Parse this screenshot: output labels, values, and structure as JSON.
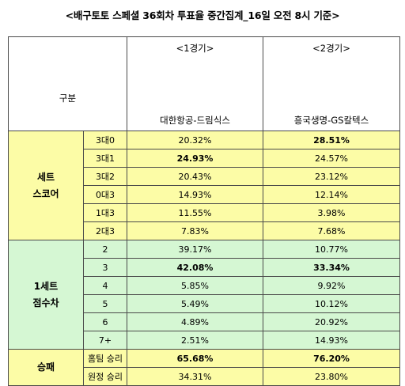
{
  "title": "<배구토토 스페셜 36회차 투표율 중간집계_16일 오전 8시 기준>",
  "header": {
    "corner": "구분",
    "games": [
      {
        "label": "<1경기>",
        "match": "대한항공-드림식스"
      },
      {
        "label": "<2경기>",
        "match": "흥국생명-GS칼텍스"
      }
    ]
  },
  "sections": [
    {
      "name_lines": [
        "세트",
        "스코어"
      ],
      "theme": "yellow",
      "rows": [
        {
          "label": "3대0",
          "g1": "20.32%",
          "g2": "28.51%",
          "g1_bold": false,
          "g2_bold": true
        },
        {
          "label": "3대1",
          "g1": "24.93%",
          "g2": "24.57%",
          "g1_bold": true,
          "g2_bold": false
        },
        {
          "label": "3대2",
          "g1": "20.43%",
          "g2": "23.12%",
          "g1_bold": false,
          "g2_bold": false
        },
        {
          "label": "0대3",
          "g1": "14.93%",
          "g2": "12.14%",
          "g1_bold": false,
          "g2_bold": false
        },
        {
          "label": "1대3",
          "g1": "11.55%",
          "g2": "3.98%",
          "g1_bold": false,
          "g2_bold": false
        },
        {
          "label": "2대3",
          "g1": "7.83%",
          "g2": "7.68%",
          "g1_bold": false,
          "g2_bold": false
        }
      ]
    },
    {
      "name_lines": [
        "1세트",
        "점수차"
      ],
      "theme": "green",
      "rows": [
        {
          "label": "2",
          "g1": "39.17%",
          "g2": "10.77%",
          "g1_bold": false,
          "g2_bold": false
        },
        {
          "label": "3",
          "g1": "42.08%",
          "g2": "33.34%",
          "g1_bold": true,
          "g2_bold": true
        },
        {
          "label": "4",
          "g1": "5.85%",
          "g2": "9.92%",
          "g1_bold": false,
          "g2_bold": false
        },
        {
          "label": "5",
          "g1": "5.49%",
          "g2": "10.12%",
          "g1_bold": false,
          "g2_bold": false
        },
        {
          "label": "6",
          "g1": "4.89%",
          "g2": "20.92%",
          "g1_bold": false,
          "g2_bold": false
        },
        {
          "label": "7+",
          "g1": "2.51%",
          "g2": "14.93%",
          "g1_bold": false,
          "g2_bold": false
        }
      ]
    },
    {
      "name_lines": [
        "승패"
      ],
      "theme": "yellow",
      "rows": [
        {
          "label": "홈팀 승리",
          "g1": "65.68%",
          "g2": "76.20%",
          "g1_bold": true,
          "g2_bold": true
        },
        {
          "label": "원정 승리",
          "g1": "34.31%",
          "g2": "23.80%",
          "g1_bold": false,
          "g2_bold": false
        }
      ]
    }
  ]
}
